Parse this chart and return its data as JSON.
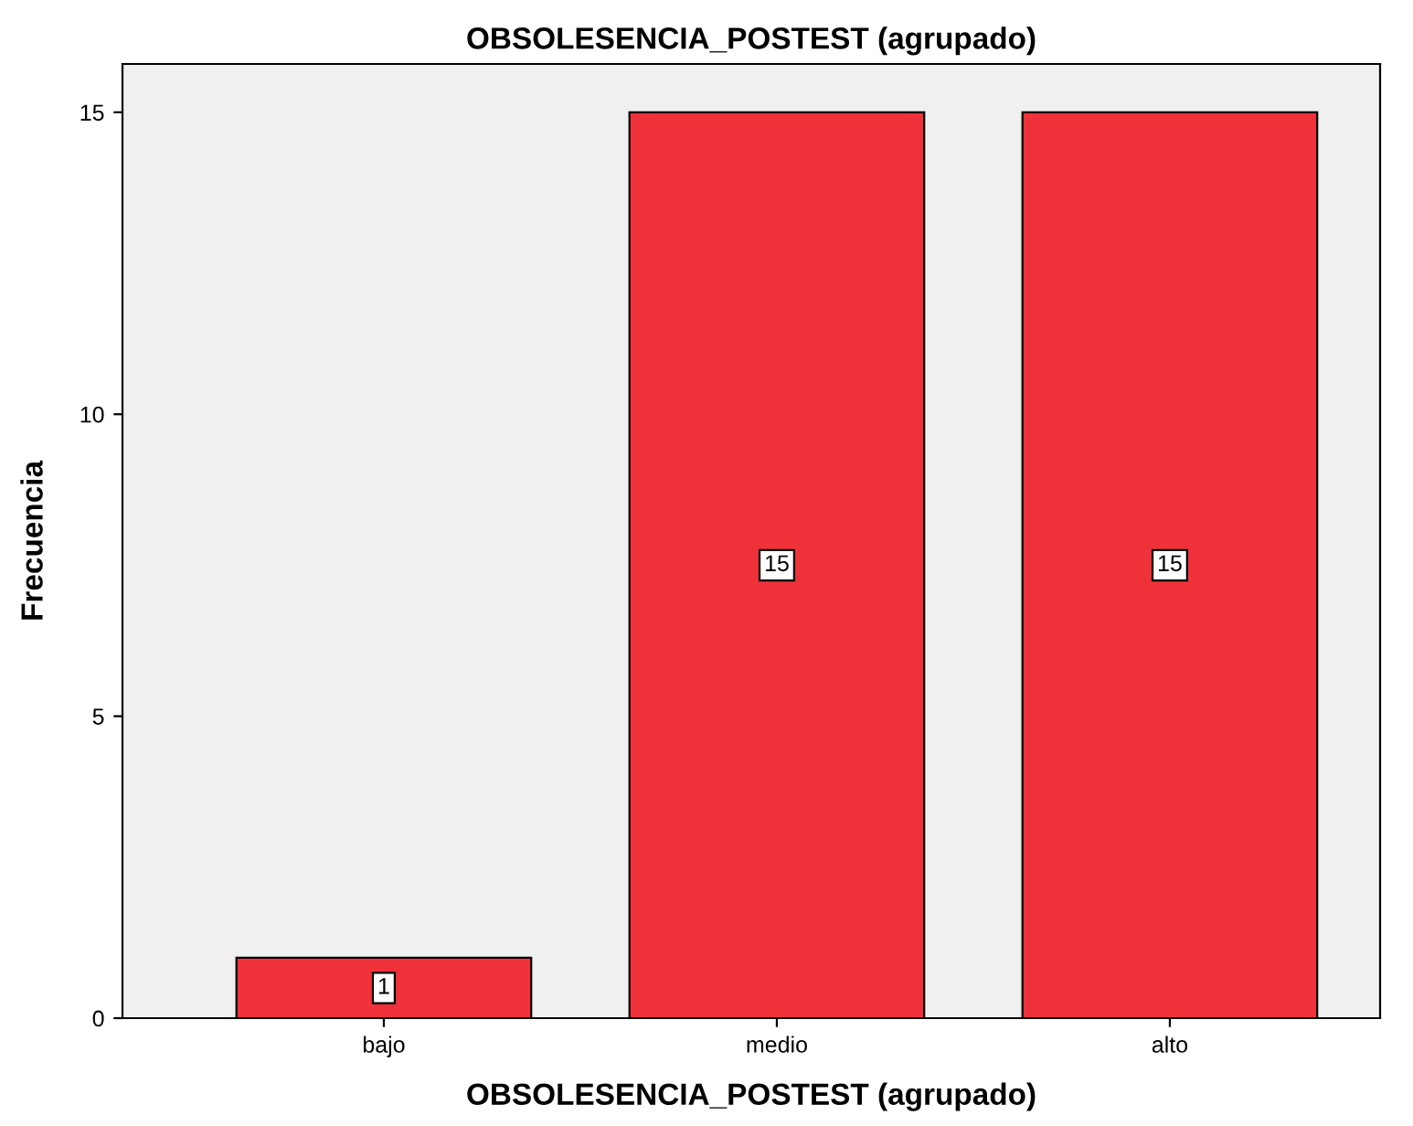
{
  "chart_data": {
    "type": "bar",
    "title": "OBSOLESENCIA_POSTEST (agrupado)",
    "xlabel": "OBSOLESENCIA_POSTEST (agrupado)",
    "ylabel": "Frecuencia",
    "categories": [
      "bajo",
      "medio",
      "alto"
    ],
    "values": [
      1,
      15,
      15
    ],
    "color": "#ef3239",
    "ylim": [
      0,
      15.8
    ],
    "yticks": [
      0,
      5,
      10,
      15
    ],
    "grid": false,
    "data_labels": true
  }
}
